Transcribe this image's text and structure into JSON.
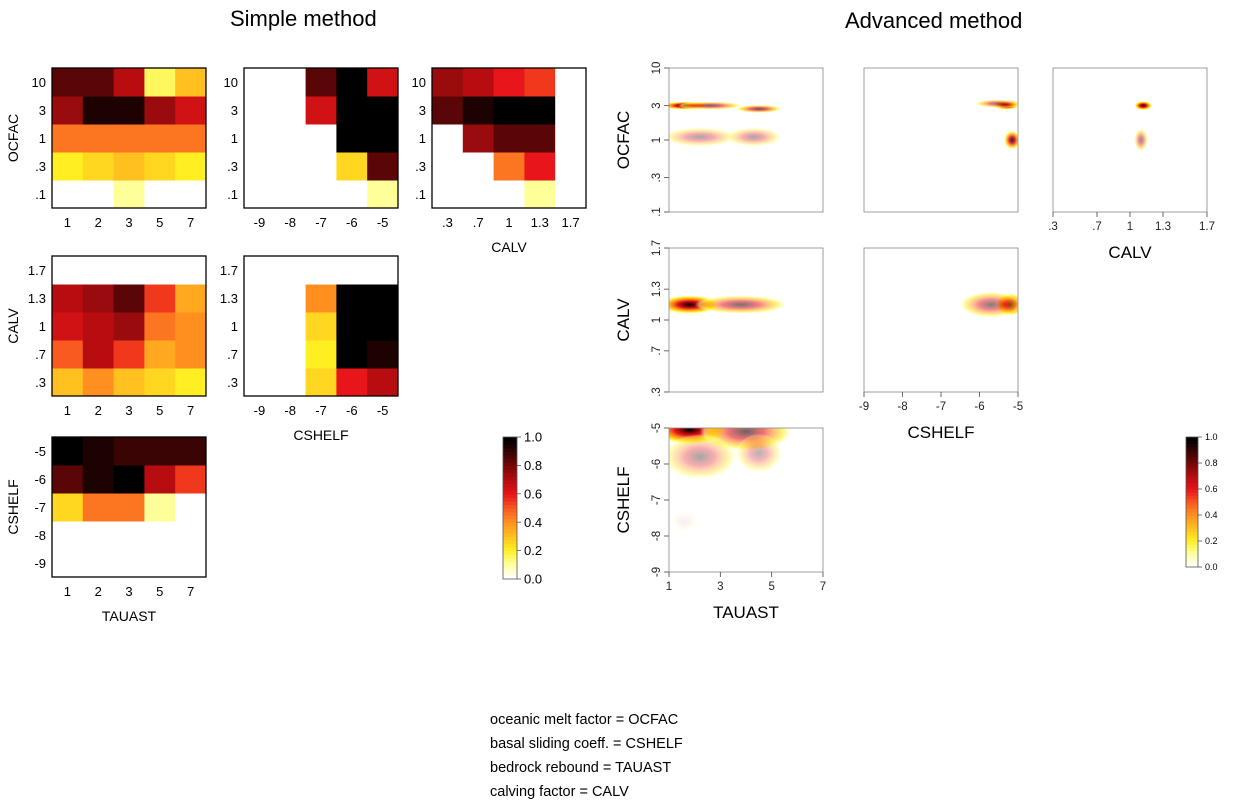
{
  "titles": {
    "simple": "Simple method",
    "advanced": "Advanced method"
  },
  "notes": [
    "oceanic melt factor = OCFAC",
    "basal sliding coeff. = CSHELF",
    "bedrock rebound = TAUAST",
    "calving factor = CALV"
  ],
  "colors": {
    "colormap": [
      "#ffffff",
      "#ffff99",
      "#ffee22",
      "#ffc020",
      "#ff9020",
      "#f85a20",
      "#e8161a",
      "#b80d10",
      "#7a0808",
      "#3a0404",
      "#000000"
    ]
  },
  "chart_data": [
    {
      "type": "heatmap",
      "panel": "simple-ocfac-tauast",
      "x_categories": [
        "1",
        "2",
        "3",
        "5",
        "7"
      ],
      "y_categories": [
        ".1",
        ".3",
        "1",
        "3",
        "10"
      ],
      "values": [
        [
          0.0,
          0.0,
          0.1,
          0.0,
          0.0
        ],
        [
          0.2,
          0.25,
          0.3,
          0.25,
          0.2
        ],
        [
          0.45,
          0.45,
          0.45,
          0.45,
          0.45
        ],
        [
          0.75,
          0.95,
          0.95,
          0.75,
          0.65
        ],
        [
          0.85,
          0.85,
          0.7,
          0.15,
          0.3
        ]
      ],
      "ylabel": "OCFAC",
      "xlabel": ""
    },
    {
      "type": "heatmap",
      "panel": "simple-ocfac-cshelf",
      "x_categories": [
        "-9",
        "-8",
        "-7",
        "-6",
        "-5"
      ],
      "y_categories": [
        ".1",
        ".3",
        "1",
        "3",
        "10"
      ],
      "values": [
        [
          0.0,
          0.0,
          0.0,
          0.0,
          0.1
        ],
        [
          0.0,
          0.0,
          0.0,
          0.25,
          0.85
        ],
        [
          0.0,
          0.0,
          0.0,
          1.0,
          1.0
        ],
        [
          0.0,
          0.0,
          0.65,
          1.0,
          1.0
        ],
        [
          0.0,
          0.0,
          0.85,
          1.0,
          0.65
        ]
      ],
      "ylabel": "",
      "xlabel": ""
    },
    {
      "type": "heatmap",
      "panel": "simple-ocfac-calv",
      "x_categories": [
        ".3",
        ".7",
        "1",
        "1.3",
        "1.7"
      ],
      "y_categories": [
        ".1",
        ".3",
        "1",
        "3",
        "10"
      ],
      "values": [
        [
          0.0,
          0.0,
          0.0,
          0.1,
          0.0
        ],
        [
          0.0,
          0.0,
          0.45,
          0.6,
          0.0
        ],
        [
          0.0,
          0.75,
          0.85,
          0.85,
          0.0
        ],
        [
          0.85,
          0.95,
          1.0,
          1.0,
          0.0
        ],
        [
          0.75,
          0.7,
          0.6,
          0.55,
          0.0
        ]
      ],
      "ylabel": "",
      "xlabel": "CALV"
    },
    {
      "type": "heatmap",
      "panel": "simple-calv-tauast",
      "x_categories": [
        "1",
        "2",
        "3",
        "5",
        "7"
      ],
      "y_categories": [
        ".3",
        ".7",
        "1",
        "1.3",
        "1.7"
      ],
      "values": [
        [
          0.3,
          0.4,
          0.3,
          0.25,
          0.2
        ],
        [
          0.5,
          0.7,
          0.55,
          0.35,
          0.4
        ],
        [
          0.65,
          0.7,
          0.75,
          0.45,
          0.4
        ],
        [
          0.7,
          0.75,
          0.85,
          0.55,
          0.35
        ],
        [
          0.0,
          0.0,
          0.0,
          0.0,
          0.0
        ]
      ],
      "ylabel": "CALV",
      "xlabel": ""
    },
    {
      "type": "heatmap",
      "panel": "simple-calv-cshelf",
      "x_categories": [
        "-9",
        "-8",
        "-7",
        "-6",
        "-5"
      ],
      "y_categories": [
        ".3",
        ".7",
        "1",
        "1.3",
        "1.7"
      ],
      "values": [
        [
          0.0,
          0.0,
          0.25,
          0.6,
          0.7
        ],
        [
          0.0,
          0.0,
          0.2,
          1.0,
          0.95
        ],
        [
          0.0,
          0.0,
          0.25,
          1.0,
          1.0
        ],
        [
          0.0,
          0.0,
          0.4,
          1.0,
          1.0
        ],
        [
          0.0,
          0.0,
          0.0,
          0.0,
          0.0
        ]
      ],
      "ylabel": "",
      "xlabel": "CSHELF"
    },
    {
      "type": "heatmap",
      "panel": "simple-cshelf-tauast",
      "x_categories": [
        "1",
        "2",
        "3",
        "5",
        "7"
      ],
      "y_categories": [
        "-9",
        "-8",
        "-7",
        "-6",
        "-5"
      ],
      "values": [
        [
          0.0,
          0.0,
          0.0,
          0.0,
          0.0
        ],
        [
          0.0,
          0.0,
          0.0,
          0.0,
          0.0
        ],
        [
          0.25,
          0.45,
          0.45,
          0.1,
          0.0
        ],
        [
          0.85,
          0.95,
          1.0,
          0.7,
          0.55
        ],
        [
          1.0,
          0.95,
          0.9,
          0.9,
          0.9
        ]
      ],
      "ylabel": "CSHELF",
      "xlabel": "TAUAST"
    },
    {
      "type": "heatmap",
      "panel": "simple-colorbar",
      "range": [
        0.0,
        1.0
      ],
      "ticks": [
        "0.0",
        "0.2",
        "0.4",
        "0.6",
        "0.8",
        "1.0"
      ]
    },
    {
      "type": "heatmap",
      "panel": "advanced-ocfac-tauast",
      "x_ticks": [],
      "y_ticks": [
        ".1",
        ".3",
        "1",
        "3",
        "10"
      ],
      "xlim": [
        1,
        7
      ],
      "y_tick_values": [
        0.1,
        0.3,
        1,
        3,
        10
      ],
      "blobs": [
        {
          "x": 1.6,
          "y": 3,
          "sx": 0.5,
          "sy": 0.22,
          "a": 1.0
        },
        {
          "x": 2.6,
          "y": 3,
          "sx": 0.7,
          "sy": 0.2,
          "a": 0.6
        },
        {
          "x": 4.5,
          "y": 2.7,
          "sx": 0.5,
          "sy": 0.2,
          "a": 0.65
        },
        {
          "x": 2.2,
          "y": 1.1,
          "sx": 0.8,
          "sy": 0.2,
          "a": 0.35
        },
        {
          "x": 4.3,
          "y": 1.1,
          "sx": 0.6,
          "sy": 0.2,
          "a": 0.35
        }
      ],
      "ylabel": "OCFAC",
      "xlabel": ""
    },
    {
      "type": "heatmap",
      "panel": "advanced-ocfac-cshelf",
      "x_ticks": [],
      "y_ticks": [],
      "xlim": [
        -9,
        -5
      ],
      "blobs": [
        {
          "x": -5.3,
          "y": 3,
          "sx": 0.18,
          "sy": 0.16,
          "a": 1.0
        },
        {
          "x": -5.5,
          "y": 3.2,
          "sx": 0.35,
          "sy": 0.25,
          "a": 0.55
        },
        {
          "x": -5.15,
          "y": 1.0,
          "sx": 0.12,
          "sy": 0.18,
          "a": 0.85
        }
      ],
      "ylabel": "",
      "xlabel": ""
    },
    {
      "type": "heatmap",
      "panel": "advanced-ocfac-calv",
      "x_ticks": [
        ".3",
        ".7",
        "1",
        "1.3",
        "1.7"
      ],
      "x_tick_values": [
        0.3,
        0.7,
        1.0,
        1.3,
        1.7
      ],
      "y_ticks": [],
      "blobs": [
        {
          "x": 1.12,
          "y": 3,
          "sx": 0.045,
          "sy": 0.25,
          "a": 1.0
        },
        {
          "x": 1.1,
          "y": 1.0,
          "sx": 0.035,
          "sy": 0.22,
          "a": 0.45
        }
      ],
      "ylabel": "",
      "xlabel": "CALV"
    },
    {
      "type": "heatmap",
      "panel": "advanced-calv-tauast",
      "x_ticks": [],
      "y_ticks": [
        ".3",
        ".7",
        "1",
        "1.3",
        "1.7"
      ],
      "y_tick_values": [
        0.3,
        0.7,
        1.0,
        1.3,
        1.7
      ],
      "xlim": [
        1,
        7
      ],
      "blobs": [
        {
          "x": 1.8,
          "y": 1.15,
          "sx": 0.65,
          "sy": 0.05,
          "a": 1.0
        },
        {
          "x": 3.8,
          "y": 1.15,
          "sx": 1.0,
          "sy": 0.05,
          "a": 0.55
        }
      ],
      "ylabel": "CALV",
      "xlabel": ""
    },
    {
      "type": "heatmap",
      "panel": "advanced-calv-cshelf",
      "x_ticks": [
        "-9",
        "-8",
        "-7",
        "-6",
        "-5"
      ],
      "x_tick_values": [
        -9,
        -8,
        -7,
        -6,
        -5
      ],
      "y_ticks": [],
      "blobs": [
        {
          "x": -5.2,
          "y": 1.15,
          "sx": 0.2,
          "sy": 0.06,
          "a": 1.0
        },
        {
          "x": -5.7,
          "y": 1.15,
          "sx": 0.45,
          "sy": 0.07,
          "a": 0.5
        }
      ],
      "ylabel": "",
      "xlabel": "CSHELF"
    },
    {
      "type": "heatmap",
      "panel": "advanced-cshelf-tauast",
      "x_ticks": [
        "1",
        "3",
        "5",
        "7"
      ],
      "x_tick_values": [
        1,
        3,
        5,
        7
      ],
      "y_ticks": [
        "-9",
        "-8",
        "-7",
        "-6",
        "-5"
      ],
      "y_tick_values": [
        -9,
        -8,
        -7,
        -6,
        -5
      ],
      "blobs": [
        {
          "x": 1.8,
          "y": -5.05,
          "sx": 0.8,
          "sy": 0.22,
          "a": 1.0
        },
        {
          "x": 4.0,
          "y": -5.1,
          "sx": 1.0,
          "sy": 0.3,
          "a": 0.6
        },
        {
          "x": 2.2,
          "y": -5.8,
          "sx": 0.8,
          "sy": 0.35,
          "a": 0.35
        },
        {
          "x": 4.5,
          "y": -5.7,
          "sx": 0.5,
          "sy": 0.3,
          "a": 0.3
        },
        {
          "x": 1.6,
          "y": -7.6,
          "sx": 0.3,
          "sy": 0.15,
          "a": 0.05
        }
      ],
      "ylabel": "CSHELF",
      "xlabel": "TAUAST"
    },
    {
      "type": "heatmap",
      "panel": "advanced-colorbar",
      "range": [
        0.0,
        1.0
      ],
      "ticks": [
        "0.0",
        "0.2",
        "0.4",
        "0.6",
        "0.8",
        "1.0"
      ]
    }
  ]
}
